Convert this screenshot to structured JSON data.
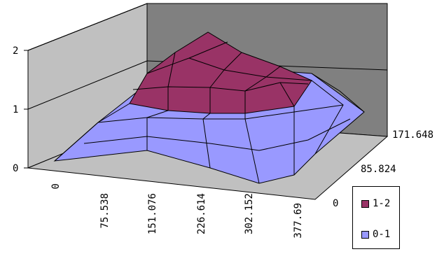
{
  "chart_data": {
    "type": "surface-3d",
    "title": "",
    "xlabel": "",
    "ylabel": "",
    "zlabel": "",
    "x_ticks": [
      "0",
      "75.538",
      "151.076",
      "226.614",
      "302.152",
      "377.69"
    ],
    "y_ticks": [
      "0",
      "85.824",
      "171.648"
    ],
    "z_ticks": [
      "0",
      "1",
      "2"
    ],
    "zlim": [
      0,
      2
    ],
    "series": [
      {
        "name": "1-2",
        "color": "#993366",
        "range": [
          1,
          2
        ]
      },
      {
        "name": "0-1",
        "color": "#9999ff",
        "range": [
          0,
          1
        ]
      }
    ],
    "legend_position": "bottom-right",
    "grid": true
  }
}
